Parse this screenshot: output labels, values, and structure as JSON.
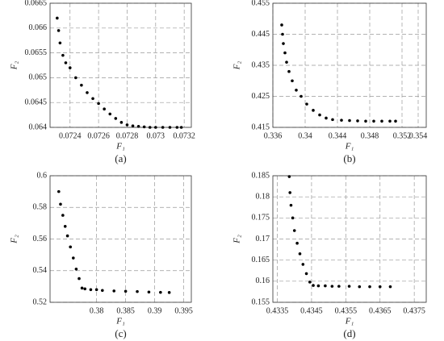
{
  "chart_data": [
    {
      "type": "scatter",
      "caption": "(a)",
      "xlabel": "F₁",
      "ylabel": "F₂",
      "color": "#000000",
      "grid": true,
      "xlim": [
        0.07226,
        0.07325
      ],
      "xticks": [
        0.0724,
        0.0726,
        0.0728,
        0.073,
        0.0732
      ],
      "ylim": [
        0.064,
        0.0665
      ],
      "yticks": [
        0.064,
        0.0645,
        0.065,
        0.0655,
        0.066,
        0.0665
      ],
      "x": [
        0.07231,
        0.07232,
        0.07233,
        0.07235,
        0.07237,
        0.0724,
        0.07244,
        0.07248,
        0.07252,
        0.07256,
        0.0726,
        0.07264,
        0.07268,
        0.07272,
        0.07276,
        0.0728,
        0.07284,
        0.07288,
        0.07292,
        0.07296,
        0.073,
        0.07305,
        0.0731,
        0.07315,
        0.07318
      ],
      "values": [
        0.0662,
        0.06595,
        0.0657,
        0.06545,
        0.0653,
        0.0652,
        0.065,
        0.06485,
        0.0647,
        0.06458,
        0.06448,
        0.06437,
        0.06427,
        0.06418,
        0.0641,
        0.06405,
        0.06403,
        0.06402,
        0.06401,
        0.064,
        0.064,
        0.064,
        0.064,
        0.064,
        0.064
      ]
    },
    {
      "type": "scatter",
      "caption": "(b)",
      "xlabel": "F₁",
      "ylabel": "F₂",
      "color": "#000000",
      "grid": true,
      "xlim": [
        0.336,
        0.355
      ],
      "xticks": [
        0.336,
        0.34,
        0.344,
        0.348,
        0.352,
        0.354
      ],
      "ylim": [
        0.415,
        0.455
      ],
      "yticks": [
        0.415,
        0.425,
        0.435,
        0.445,
        0.455
      ],
      "x": [
        0.3371,
        0.3372,
        0.3373,
        0.3375,
        0.3377,
        0.338,
        0.3384,
        0.3389,
        0.3395,
        0.3402,
        0.341,
        0.3418,
        0.3426,
        0.3434,
        0.3445,
        0.3455,
        0.3465,
        0.3475,
        0.3485,
        0.3495,
        0.3505,
        0.3512
      ],
      "values": [
        0.448,
        0.445,
        0.442,
        0.439,
        0.436,
        0.433,
        0.43,
        0.427,
        0.425,
        0.4225,
        0.4205,
        0.419,
        0.418,
        0.4175,
        0.4173,
        0.4172,
        0.4171,
        0.417,
        0.417,
        0.417,
        0.417,
        0.417
      ]
    },
    {
      "type": "scatter",
      "caption": "(c)",
      "xlabel": "F₁",
      "ylabel": "F₂",
      "color": "#000000",
      "grid": true,
      "xlim": [
        0.372,
        0.3963
      ],
      "xticks": [
        0.38,
        0.385,
        0.39,
        0.395
      ],
      "ylim": [
        0.52,
        0.6
      ],
      "yticks": [
        0.52,
        0.54,
        0.56,
        0.58,
        0.6
      ],
      "x": [
        0.3735,
        0.3738,
        0.3742,
        0.3746,
        0.375,
        0.3755,
        0.376,
        0.3765,
        0.377,
        0.3775,
        0.378,
        0.379,
        0.38,
        0.381,
        0.383,
        0.385,
        0.387,
        0.389,
        0.391,
        0.3925
      ],
      "values": [
        0.59,
        0.582,
        0.575,
        0.568,
        0.562,
        0.555,
        0.548,
        0.541,
        0.535,
        0.529,
        0.5285,
        0.528,
        0.528,
        0.5275,
        0.5272,
        0.527,
        0.5268,
        0.5265,
        0.5263,
        0.5262
      ]
    },
    {
      "type": "scatter",
      "caption": "(d)",
      "xlabel": "F₁",
      "ylabel": "F₂",
      "color": "#000000",
      "grid": true,
      "xlim": [
        0.43337,
        0.43785
      ],
      "xticks": [
        0.4335,
        0.4345,
        0.4355,
        0.4365,
        0.4375
      ],
      "ylim": [
        0.155,
        0.185
      ],
      "yticks": [
        0.155,
        0.16,
        0.165,
        0.17,
        0.175,
        0.18,
        0.185
      ],
      "x": [
        0.43385,
        0.43387,
        0.4339,
        0.43395,
        0.434,
        0.43408,
        0.43416,
        0.43425,
        0.43435,
        0.43445,
        0.43455,
        0.4347,
        0.4349,
        0.4351,
        0.4353,
        0.4356,
        0.4359,
        0.4362,
        0.4365,
        0.4368
      ],
      "values": [
        0.1848,
        0.181,
        0.178,
        0.175,
        0.172,
        0.169,
        0.1665,
        0.164,
        0.1618,
        0.1598,
        0.159,
        0.1589,
        0.1589,
        0.1588,
        0.1588,
        0.1588,
        0.1587,
        0.1587,
        0.1587,
        0.1587
      ]
    }
  ]
}
